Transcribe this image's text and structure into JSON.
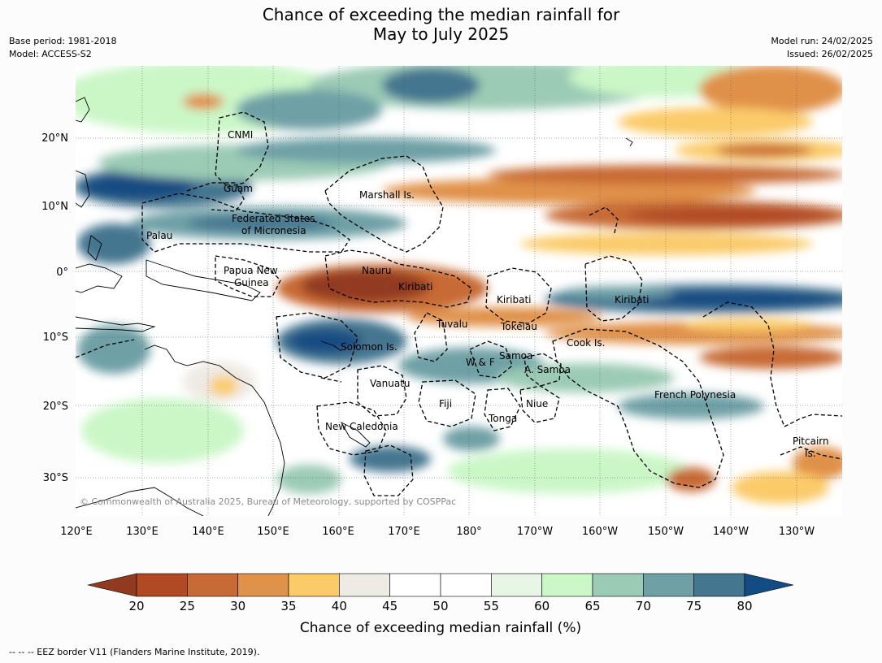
{
  "header": {
    "title_line1": "Chance of exceeding the median rainfall for",
    "title_line2": "May to July 2025",
    "base_period": "Base period: 1981-2018",
    "model": "Model: ACCESS-S2",
    "model_run": "Model run: 24/02/2025",
    "issued": "Issued: 26/02/2025"
  },
  "map": {
    "lon_labels": [
      "120°E",
      "130°E",
      "140°E",
      "150°E",
      "160°E",
      "170°E",
      "180°",
      "170°W",
      "160°W",
      "150°W",
      "140°W",
      "130°W"
    ],
    "lat_labels": [
      "20°N",
      "10°N",
      "0°",
      "10°S",
      "20°S",
      "30°S"
    ],
    "places": [
      {
        "name": "CNMI"
      },
      {
        "name": "Guam"
      },
      {
        "name": "Marshall Is."
      },
      {
        "name": "Federated States"
      },
      {
        "name": "of Micronesia"
      },
      {
        "name": "Palau"
      },
      {
        "name": "Papua New"
      },
      {
        "name": "Guinea"
      },
      {
        "name": "Nauru"
      },
      {
        "name": "Kiribati"
      },
      {
        "name": "Kiribati"
      },
      {
        "name": "Kiribati"
      },
      {
        "name": "Tuvalu"
      },
      {
        "name": "Tokelau"
      },
      {
        "name": "Cook Is."
      },
      {
        "name": "Solomon Is."
      },
      {
        "name": "W & F"
      },
      {
        "name": "Samoa"
      },
      {
        "name": "A. Samoa"
      },
      {
        "name": "Vanuatu"
      },
      {
        "name": "Fiji"
      },
      {
        "name": "Niue"
      },
      {
        "name": "Tonga"
      },
      {
        "name": "French Polynesia"
      },
      {
        "name": "New Caledonia"
      },
      {
        "name": "Pitcairn"
      },
      {
        "name": "Is."
      }
    ],
    "copyright": "© Commonwealth of Australia 2025, Bureau of Meteorology, supported by COSPPac"
  },
  "colorbar": {
    "ticks": [
      "20",
      "25",
      "30",
      "35",
      "40",
      "45",
      "50",
      "55",
      "60",
      "65",
      "70",
      "75",
      "80"
    ],
    "colors": [
      "#b04a25",
      "#c86a35",
      "#e0914a",
      "#fbcb6a",
      "#eeeae4",
      "#ffffff",
      "#ffffff",
      "#e8f6e6",
      "#cbf7c7",
      "#9bcbb5",
      "#6ea0a6",
      "#457690"
    ],
    "low_extend_color": "#923a20",
    "high_extend_color": "#134c83",
    "label": "Chance of exceeding median rainfall (%)"
  },
  "footer": {
    "legend_text": "-- -- -- EEZ border V11 (Flanders Marine Institute, 2019)."
  }
}
